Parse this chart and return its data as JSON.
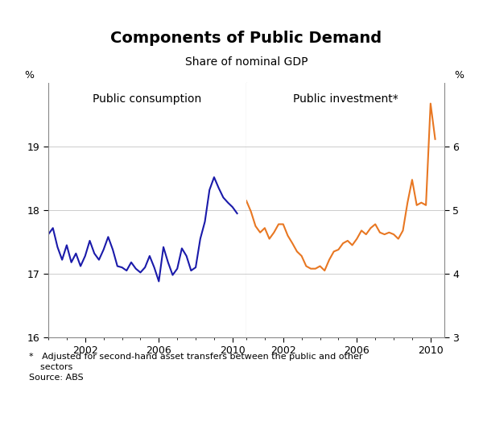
{
  "title": "Components of Public Demand",
  "subtitle": "Share of nominal GDP",
  "left_label": "Public consumption",
  "right_label": "Public investment*",
  "ylabel_left": "%",
  "ylabel_right": "%",
  "footnote_line1": "*   Adjusted for second-hand asset transfers between the public and other",
  "footnote_line2": "    sectors",
  "footnote_line3": "Source: ABS",
  "left_color": "#1a1aaa",
  "right_color": "#e87722",
  "left_ylim": [
    16,
    20
  ],
  "right_ylim": [
    3,
    7
  ],
  "left_yticks": [
    16,
    17,
    18,
    19
  ],
  "right_yticks": [
    3,
    4,
    5,
    6
  ],
  "xticks": [
    2002,
    2006,
    2010
  ],
  "public_consumption_x": [
    2000.0,
    2000.25,
    2000.5,
    2000.75,
    2001.0,
    2001.25,
    2001.5,
    2001.75,
    2002.0,
    2002.25,
    2002.5,
    2002.75,
    2003.0,
    2003.25,
    2003.5,
    2003.75,
    2004.0,
    2004.25,
    2004.5,
    2004.75,
    2005.0,
    2005.25,
    2005.5,
    2005.75,
    2006.0,
    2006.25,
    2006.5,
    2006.75,
    2007.0,
    2007.25,
    2007.5,
    2007.75,
    2008.0,
    2008.25,
    2008.5,
    2008.75,
    2009.0,
    2009.25,
    2009.5,
    2009.75,
    2010.0,
    2010.25
  ],
  "public_consumption_y": [
    17.62,
    17.72,
    17.42,
    17.22,
    17.45,
    17.18,
    17.32,
    17.12,
    17.28,
    17.52,
    17.32,
    17.22,
    17.38,
    17.58,
    17.38,
    17.12,
    17.1,
    17.05,
    17.18,
    17.08,
    17.02,
    17.1,
    17.28,
    17.1,
    16.88,
    17.42,
    17.18,
    16.98,
    17.08,
    17.4,
    17.28,
    17.05,
    17.1,
    17.55,
    17.82,
    18.32,
    18.52,
    18.35,
    18.2,
    18.12,
    18.05,
    17.95
  ],
  "public_investment_x": [
    2000.0,
    2000.25,
    2000.5,
    2000.75,
    2001.0,
    2001.25,
    2001.5,
    2001.75,
    2002.0,
    2002.25,
    2002.5,
    2002.75,
    2003.0,
    2003.25,
    2003.5,
    2003.75,
    2004.0,
    2004.25,
    2004.5,
    2004.75,
    2005.0,
    2005.25,
    2005.5,
    2005.75,
    2006.0,
    2006.25,
    2006.5,
    2006.75,
    2007.0,
    2007.25,
    2007.5,
    2007.75,
    2008.0,
    2008.25,
    2008.5,
    2008.75,
    2009.0,
    2009.25,
    2009.5,
    2009.75,
    2010.0,
    2010.25
  ],
  "public_investment_y": [
    5.15,
    4.98,
    4.75,
    4.65,
    4.72,
    4.55,
    4.65,
    4.78,
    4.78,
    4.6,
    4.48,
    4.35,
    4.28,
    4.12,
    4.08,
    4.08,
    4.12,
    4.05,
    4.22,
    4.35,
    4.38,
    4.48,
    4.52,
    4.45,
    4.55,
    4.68,
    4.62,
    4.72,
    4.78,
    4.65,
    4.62,
    4.65,
    4.62,
    4.55,
    4.68,
    5.12,
    5.48,
    5.08,
    5.12,
    5.08,
    6.68,
    6.12
  ]
}
